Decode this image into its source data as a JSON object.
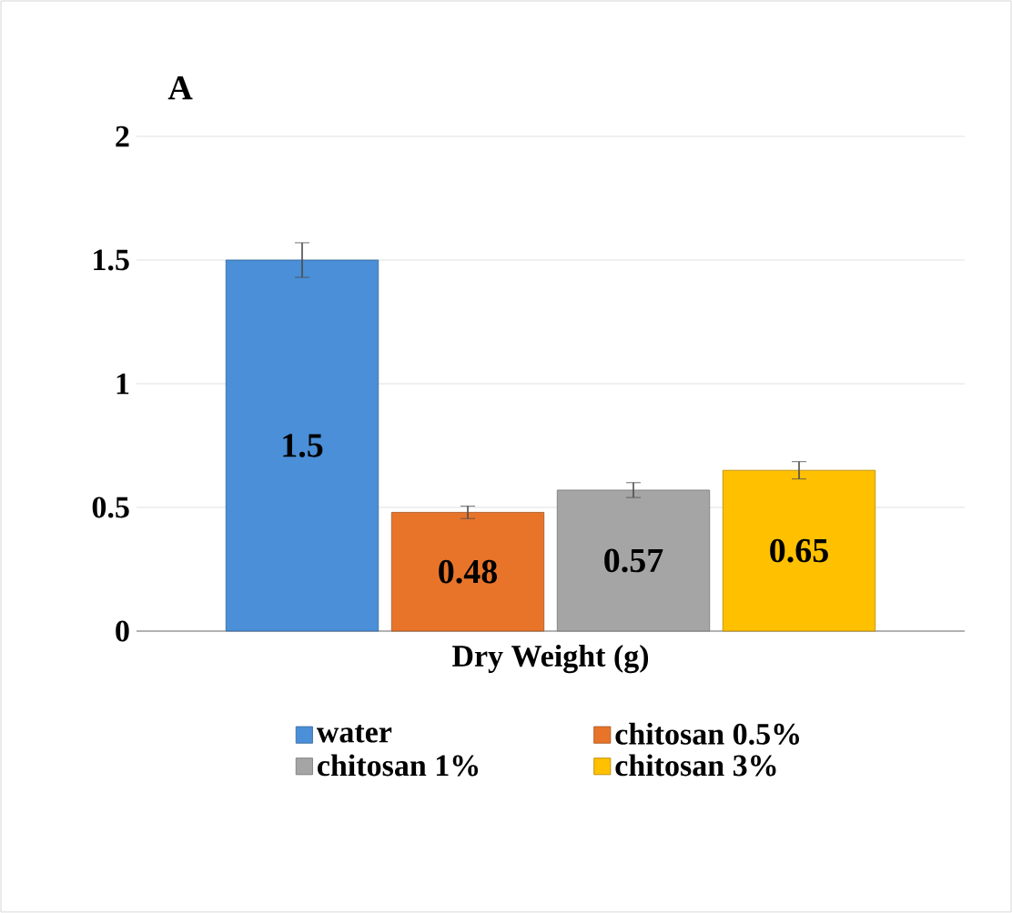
{
  "chart_data": {
    "type": "bar",
    "title": "A",
    "categories": [
      "Dry Weight (g)"
    ],
    "series": [
      {
        "name": "water",
        "color": "#4a8fd8",
        "values": [
          1.5
        ],
        "errors": [
          0.07
        ]
      },
      {
        "name": "chitosan 0.5%",
        "color": "#e8742a",
        "values": [
          0.48
        ],
        "errors": [
          0.025
        ]
      },
      {
        "name": "chitosan 1%",
        "color": "#a5a5a5",
        "values": [
          0.57
        ],
        "errors": [
          0.03
        ]
      },
      {
        "name": "chitosan 3%",
        "color": "#ffc000",
        "values": [
          0.65
        ],
        "errors": [
          0.035
        ]
      }
    ],
    "ylim": [
      0,
      2
    ],
    "yticks": [
      0,
      0.5,
      1,
      1.5,
      2
    ],
    "grid": "y",
    "legend": "bottom",
    "data_labels": true
  }
}
